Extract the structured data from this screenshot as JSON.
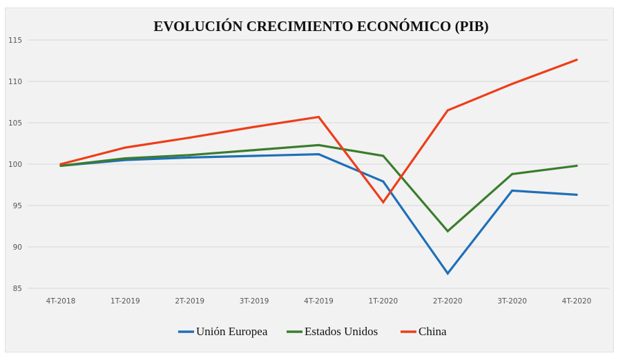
{
  "chart_data": {
    "type": "line",
    "title": "EVOLUCIÓN CRECIMIENTO ECONÓMICO (PIB)",
    "xlabel": "",
    "ylabel": "",
    "categories": [
      "4T-2018",
      "1T-2019",
      "2T-2019",
      "3T-2019",
      "4T-2019",
      "1T-2020",
      "2T-2020",
      "3T-2020",
      "4T-2020"
    ],
    "ylim": [
      85,
      115
    ],
    "yticks": [
      85,
      90,
      95,
      100,
      105,
      110,
      115
    ],
    "grid": true,
    "legend_position": "bottom-center",
    "series": [
      {
        "name": "Unión Europea",
        "color": "#1f6fb8",
        "values": [
          99.8,
          100.5,
          100.8,
          101.0,
          101.2,
          97.9,
          86.8,
          96.8,
          96.3
        ]
      },
      {
        "name": "Estados Unidos",
        "color": "#3a7d2c",
        "values": [
          99.8,
          100.7,
          101.1,
          101.7,
          102.3,
          101.0,
          91.9,
          98.8,
          99.8
        ]
      },
      {
        "name": "China",
        "color": "#ee3d1a",
        "values": [
          100.0,
          102.0,
          103.2,
          104.5,
          105.7,
          95.4,
          106.5,
          109.7,
          112.6
        ]
      }
    ]
  }
}
